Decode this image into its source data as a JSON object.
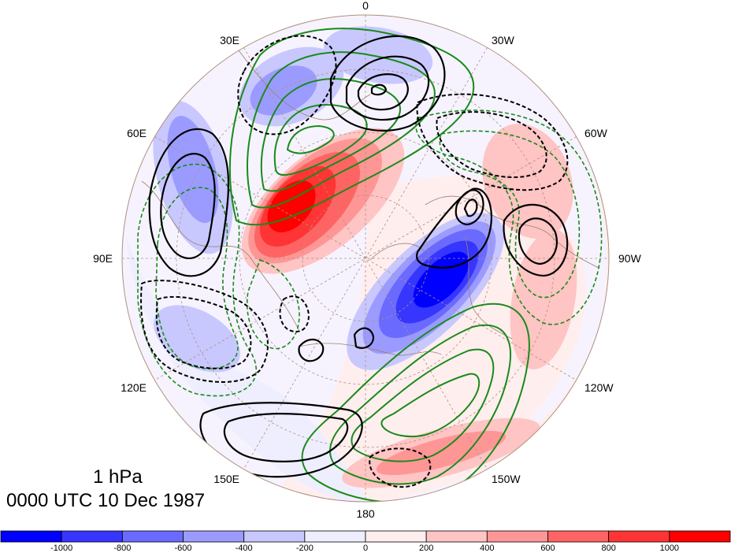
{
  "level_label": "1 hPa",
  "time_label": "0000 UTC 10 Dec 1987",
  "longitude_labels": [
    "0",
    "30W",
    "60W",
    "90W",
    "120W",
    "150W",
    "180",
    "150E",
    "120E",
    "90E",
    "60E",
    "30E"
  ],
  "colorbar": {
    "tick_labels": [
      "-1000",
      "-800",
      "-600",
      "-400",
      "-200",
      "0",
      "200",
      "400",
      "600",
      "800",
      "1000"
    ],
    "colors": [
      "#0000ff",
      "#3636ff",
      "#6a6aff",
      "#9b9bff",
      "#c8c8ff",
      "#eeeeff",
      "#ffeeee",
      "#ffc4c4",
      "#ff9696",
      "#ff6464",
      "#ff3434",
      "#ff0000"
    ]
  },
  "colors": {
    "positive_contour": "#000000",
    "negative_contour": "#000000",
    "green_contour": "#1a8a1a",
    "coastline": "#9a8070",
    "grid": "#b09080"
  }
}
